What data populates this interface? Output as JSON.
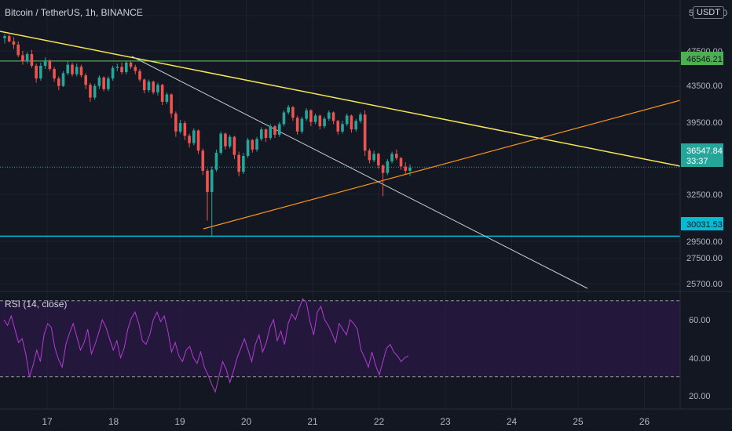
{
  "header": {
    "symbol_title": "Bitcoin / TetherUS, 1h, BINANCE",
    "currency": "USDT",
    "currency_hint": "5"
  },
  "rsi": {
    "title": "RSI (14, close)",
    "ticks": [
      "60.00",
      "40.00",
      "20.00"
    ],
    "upper_band": 70,
    "lower_band": 30,
    "values": [
      60,
      57,
      62,
      55,
      48,
      50,
      42,
      30,
      36,
      44,
      38,
      52,
      58,
      56,
      45,
      39,
      35,
      47,
      53,
      58,
      51,
      44,
      48,
      55,
      42,
      47,
      53,
      60,
      56,
      50,
      44,
      49,
      40,
      45,
      55,
      61,
      64,
      58,
      49,
      47,
      52,
      60,
      64,
      59,
      62,
      54,
      43,
      48,
      41,
      38,
      44,
      46,
      40,
      37,
      43,
      35,
      31,
      26,
      22,
      30,
      38,
      34,
      27,
      33,
      40,
      45,
      50,
      44,
      38,
      47,
      52,
      43,
      48,
      56,
      60,
      49,
      54,
      47,
      58,
      63,
      60,
      66,
      71,
      69,
      59,
      52,
      64,
      67,
      60,
      57,
      53,
      48,
      58,
      55,
      52,
      60,
      58,
      55,
      44,
      40,
      35,
      43,
      36,
      31,
      38,
      45,
      47,
      43,
      41,
      38,
      40,
      41
    ]
  },
  "price_axis": {
    "ticks": [
      "47500.00",
      "43500.00",
      "39500.00",
      "32500.00",
      "29500.00",
      "27500.00",
      "25700.00"
    ],
    "top_hint": "5",
    "top_hint2": "0"
  },
  "labels": {
    "resistance": "46546.21",
    "current_price": "36547.84",
    "countdown": "33:37",
    "support": "30031.53"
  },
  "time_axis": {
    "ticks": [
      "17",
      "18",
      "19",
      "20",
      "21",
      "22",
      "23",
      "24",
      "25",
      "26"
    ]
  },
  "colors": {
    "bg": "#131722",
    "up": "#26a69a",
    "down": "#ef5350",
    "resistance": "#4caf50",
    "support": "#00bcd4",
    "yellow_trend": "#f5e552",
    "orange_trend": "#f7931a",
    "white_trend": "#c9cbd1",
    "rsi_line": "#b43bd2",
    "rsi_band_fill": "#2a1a45"
  },
  "chart_data": {
    "type": "candlestick",
    "pair": "BTC/USDT",
    "interval": "1h",
    "x_labels": [
      "17",
      "18",
      "19",
      "20",
      "21",
      "22",
      "23",
      "24",
      "25",
      "26"
    ],
    "levels": {
      "resistance": 46546.21,
      "support": 30031.53,
      "last_price": 36547.84
    },
    "ohlc": [
      [
        48700,
        49100,
        48200,
        48900
      ],
      [
        48900,
        49200,
        48300,
        48400
      ],
      [
        48400,
        48800,
        47700,
        48100
      ],
      [
        48100,
        48400,
        46900,
        47100
      ],
      [
        47100,
        47500,
        46200,
        46500
      ],
      [
        46500,
        47400,
        46300,
        47200
      ],
      [
        47200,
        47600,
        45900,
        46100
      ],
      [
        46100,
        46300,
        44500,
        44900
      ],
      [
        44900,
        46400,
        44700,
        46100
      ],
      [
        46100,
        46900,
        45800,
        46600
      ],
      [
        46600,
        46700,
        45600,
        45800
      ],
      [
        45800,
        46000,
        44600,
        44900
      ],
      [
        44900,
        45100,
        43800,
        44200
      ],
      [
        44200,
        45600,
        44100,
        45400
      ],
      [
        45400,
        46500,
        45200,
        46200
      ],
      [
        46200,
        46400,
        45100,
        45300
      ],
      [
        45300,
        46300,
        45100,
        46000
      ],
      [
        46000,
        46200,
        45000,
        45200
      ],
      [
        45200,
        45400,
        43900,
        44300
      ],
      [
        44300,
        44500,
        42700,
        43100
      ],
      [
        43100,
        44400,
        42900,
        44200
      ],
      [
        44200,
        45200,
        43900,
        45000
      ],
      [
        45000,
        45100,
        43700,
        43900
      ],
      [
        43900,
        45100,
        43700,
        44900
      ],
      [
        44900,
        46100,
        44700,
        45900
      ],
      [
        45900,
        46300,
        45600,
        46000
      ],
      [
        46000,
        46400,
        45300,
        45500
      ],
      [
        45500,
        46600,
        45300,
        46400
      ],
      [
        46400,
        46500,
        45800,
        46000
      ],
      [
        46000,
        46200,
        45300,
        45600
      ],
      [
        45600,
        45800,
        44600,
        44800
      ],
      [
        44800,
        44900,
        43500,
        43800
      ],
      [
        43800,
        44800,
        43600,
        44600
      ],
      [
        44600,
        44700,
        43400,
        43600
      ],
      [
        43600,
        44500,
        43300,
        44300
      ],
      [
        44300,
        44400,
        42400,
        42700
      ],
      [
        42700,
        43600,
        42500,
        43400
      ],
      [
        43400,
        43500,
        41200,
        41600
      ],
      [
        41600,
        41800,
        39400,
        39900
      ],
      [
        39900,
        41000,
        39700,
        40700
      ],
      [
        40700,
        40900,
        39100,
        39500
      ],
      [
        39500,
        39700,
        38400,
        38800
      ],
      [
        38800,
        40200,
        38600,
        40000
      ],
      [
        40000,
        40100,
        37800,
        38100
      ],
      [
        38100,
        38300,
        35800,
        36200
      ],
      [
        36200,
        36400,
        31500,
        34200
      ],
      [
        34200,
        36600,
        30000,
        36300
      ],
      [
        36300,
        38200,
        36100,
        37900
      ],
      [
        37900,
        39900,
        37700,
        39700
      ],
      [
        39700,
        39800,
        38200,
        38500
      ],
      [
        38500,
        39600,
        38300,
        39400
      ],
      [
        39400,
        39500,
        37300,
        37700
      ],
      [
        37700,
        38000,
        35700,
        36100
      ],
      [
        36100,
        37900,
        35900,
        37600
      ],
      [
        37600,
        39300,
        37400,
        39100
      ],
      [
        39100,
        39200,
        37900,
        38200
      ],
      [
        38200,
        39400,
        38000,
        39200
      ],
      [
        39200,
        40300,
        39000,
        40100
      ],
      [
        40100,
        40200,
        38900,
        39300
      ],
      [
        39300,
        40600,
        39100,
        40400
      ],
      [
        40400,
        40500,
        39300,
        39600
      ],
      [
        39600,
        40800,
        39400,
        40600
      ],
      [
        40600,
        41900,
        40400,
        41700
      ],
      [
        41700,
        42400,
        41500,
        42200
      ],
      [
        42200,
        42300,
        40900,
        41200
      ],
      [
        41200,
        41400,
        39600,
        39900
      ],
      [
        39900,
        41300,
        39700,
        41100
      ],
      [
        41100,
        42100,
        40900,
        41900
      ],
      [
        41900,
        42000,
        40400,
        40800
      ],
      [
        40800,
        41600,
        40600,
        41400
      ],
      [
        41400,
        41500,
        40100,
        40400
      ],
      [
        40400,
        41300,
        40200,
        41100
      ],
      [
        41100,
        41900,
        40900,
        41700
      ],
      [
        41700,
        41800,
        40600,
        40900
      ],
      [
        40900,
        41000,
        39600,
        39900
      ],
      [
        39900,
        40900,
        39700,
        40600
      ],
      [
        40600,
        41600,
        40400,
        41400
      ],
      [
        41400,
        41500,
        39800,
        40100
      ],
      [
        40100,
        41100,
        39900,
        40900
      ],
      [
        40900,
        41700,
        40700,
        41500
      ],
      [
        41500,
        41900,
        37600,
        38100
      ],
      [
        38100,
        38300,
        36900,
        37200
      ],
      [
        37200,
        38100,
        37000,
        37800
      ],
      [
        37800,
        37900,
        36400,
        36700
      ],
      [
        36700,
        36800,
        33800,
        36000
      ],
      [
        36000,
        37300,
        35800,
        37100
      ],
      [
        37100,
        38000,
        36900,
        37800
      ],
      [
        37800,
        38200,
        37200,
        37400
      ],
      [
        37400,
        37500,
        36300,
        36600
      ],
      [
        36600,
        37000,
        35900,
        36200
      ],
      [
        36200,
        36800,
        35700,
        36500
      ]
    ]
  }
}
